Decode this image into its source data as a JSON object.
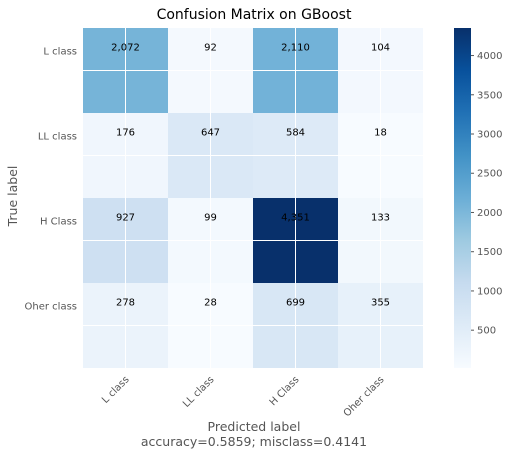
{
  "chart_data": {
    "type": "heatmap",
    "title": "Confusion Matrix on GBoost",
    "ylabel": "True label",
    "xlabel": "Predicted label",
    "xlabel_sub": "accuracy=0.5859; misclass=0.4141",
    "row_labels": [
      "L class",
      "LL class",
      "H Class",
      "Oher class"
    ],
    "col_labels": [
      "L class",
      "LL class",
      "H Class",
      "Oher class"
    ],
    "matrix": [
      [
        2072,
        92,
        2110,
        104
      ],
      [
        176,
        647,
        584,
        18
      ],
      [
        927,
        99,
        4351,
        133
      ],
      [
        278,
        28,
        699,
        355
      ]
    ],
    "cell_labels": [
      [
        "2,072",
        "92",
        "2,110",
        "104"
      ],
      [
        "176",
        "647",
        "584",
        "18"
      ],
      [
        "927",
        "99",
        "4,351",
        "133"
      ],
      [
        "278",
        "28",
        "699",
        "355"
      ]
    ],
    "colormap": "Blues",
    "color_range": [
      18,
      4351
    ],
    "colorbar_ticks": [
      "500",
      "1000",
      "1500",
      "2000",
      "2500",
      "3000",
      "3500",
      "4000"
    ],
    "colorbar_tick_values": [
      500,
      1000,
      1500,
      2000,
      2500,
      3000,
      3500,
      4000
    ],
    "grid": true
  }
}
